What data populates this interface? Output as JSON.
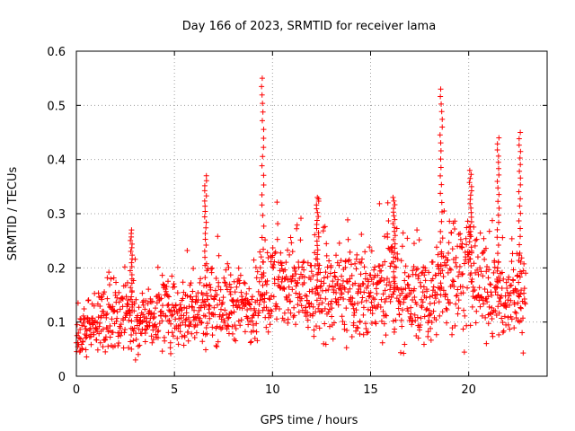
{
  "chart_data": {
    "type": "scatter",
    "title": "Day 166 of 2023, SRMTID for receiver lama",
    "xlabel": "GPS time / hours",
    "ylabel": "SRMTID / TECUs",
    "xlim": [
      0,
      24
    ],
    "ylim": [
      0,
      0.6
    ],
    "x_ticks": [
      0,
      5,
      10,
      15,
      20
    ],
    "x_tick_labels": [
      "0",
      "5",
      "10",
      "15",
      "20"
    ],
    "y_ticks": [
      0,
      0.1,
      0.2,
      0.3,
      0.4,
      0.5,
      0.6
    ],
    "y_tick_labels": [
      "0",
      "0.1",
      "0.2",
      "0.3",
      "0.4",
      "0.5",
      "0.6"
    ],
    "grid": true,
    "marker": "+",
    "color": "#ff0000",
    "x_data_range": [
      0,
      22.9
    ],
    "baseline_profile": [
      [
        0.0,
        0.07
      ],
      [
        1.0,
        0.1
      ],
      [
        2.0,
        0.11
      ],
      [
        3.0,
        0.1
      ],
      [
        4.0,
        0.11
      ],
      [
        5.0,
        0.12
      ],
      [
        6.0,
        0.12
      ],
      [
        7.0,
        0.14
      ],
      [
        8.0,
        0.13
      ],
      [
        9.0,
        0.13
      ],
      [
        10.0,
        0.17
      ],
      [
        11.0,
        0.16
      ],
      [
        12.0,
        0.15
      ],
      [
        13.0,
        0.15
      ],
      [
        14.0,
        0.15
      ],
      [
        15.0,
        0.15
      ],
      [
        16.0,
        0.16
      ],
      [
        17.0,
        0.14
      ],
      [
        18.0,
        0.13
      ],
      [
        19.0,
        0.2
      ],
      [
        20.0,
        0.19
      ],
      [
        21.0,
        0.16
      ],
      [
        22.0,
        0.14
      ],
      [
        22.9,
        0.15
      ]
    ],
    "spikes": [
      {
        "x": 2.8,
        "value": 0.27
      },
      {
        "x": 6.6,
        "value": 0.37
      },
      {
        "x": 9.5,
        "value": 0.55
      },
      {
        "x": 12.3,
        "value": 0.33
      },
      {
        "x": 16.2,
        "value": 0.33
      },
      {
        "x": 18.6,
        "value": 0.53
      },
      {
        "x": 20.1,
        "value": 0.38
      },
      {
        "x": 21.5,
        "value": 0.44
      },
      {
        "x": 22.6,
        "value": 0.45
      }
    ],
    "approx_point_count": 1500
  }
}
